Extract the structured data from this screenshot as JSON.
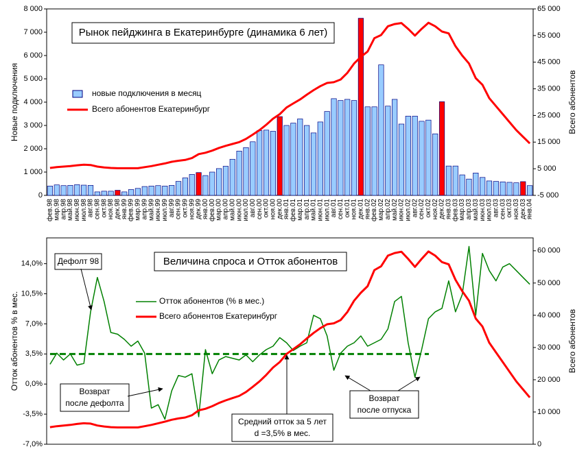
{
  "chart_data": [
    {
      "type": "bar",
      "title": "Рынок пейджинга в Екатеринбурге (динамика 6 лет)",
      "y_label": "Новые подключения",
      "y2_label": "Всего абонентов",
      "categories": [
        "фев.98",
        "мар.98",
        "апр.98",
        "май.98",
        "июн.98",
        "июл.98",
        "авг.98",
        "сен.98",
        "окт.98",
        "ноя.98",
        "дек.98",
        "янв.99",
        "фев.99",
        "мар.99",
        "апр.99",
        "май.99",
        "июн.99",
        "июл.99",
        "авг.99",
        "сен.99",
        "окт.99",
        "ноя.99",
        "дек.99",
        "янв.00",
        "фев.00",
        "мар.00",
        "апр.00",
        "май.00",
        "июн.00",
        "июл.00",
        "авг.00",
        "сен.00",
        "окт.00",
        "ноя.00",
        "дек.00",
        "янв.01",
        "фев.01",
        "мар.01",
        "апр.01",
        "май.01",
        "июн.01",
        "июл.01",
        "авг.01",
        "сен.01",
        "окт.01",
        "ноя.01",
        "дек.01",
        "янв.02",
        "фев.02",
        "мар.02",
        "апр.02",
        "май.02",
        "июн.02",
        "июл.02",
        "авг.02",
        "сен.02",
        "окт.02",
        "ноя.02",
        "дек.02",
        "янв.03",
        "фев.03",
        "мар.03",
        "апр.03",
        "май.03",
        "июн.03",
        "июл.03",
        "авг.03",
        "сен.03",
        "окт.03",
        "ноя.03",
        "дек.03",
        "янв.04"
      ],
      "series": [
        {
          "name": "новые подключения в месяц",
          "color": "#99ccff",
          "highlight_color": "#ff0000",
          "highlight_indices": [
            10,
            22,
            34,
            46,
            58,
            70
          ],
          "values": [
            400,
            450,
            420,
            430,
            460,
            440,
            430,
            150,
            180,
            180,
            220,
            150,
            250,
            300,
            380,
            400,
            420,
            400,
            430,
            600,
            750,
            900,
            980,
            850,
            1000,
            1150,
            1250,
            1550,
            1900,
            2050,
            2300,
            2780,
            2800,
            2750,
            3380,
            3000,
            3100,
            3280,
            3000,
            2680,
            3150,
            3600,
            4150,
            4070,
            4120,
            4070,
            7600,
            3800,
            3800,
            5600,
            3830,
            4120,
            3060,
            3400,
            3400,
            3180,
            3230,
            2640,
            4020,
            1260,
            1260,
            880,
            700,
            960,
            770,
            620,
            600,
            580,
            560,
            540,
            590,
            420
          ]
        },
        {
          "name": "Всего абонентов Екатеринбург",
          "color": "#ff0000",
          "axis": "y2",
          "type": "line",
          "values": [
            5300,
            5600,
            5800,
            6000,
            6300,
            6500,
            6400,
            5800,
            5500,
            5300,
            5200,
            5200,
            5200,
            5200,
            5600,
            6000,
            6500,
            7000,
            7600,
            8000,
            8300,
            9000,
            10500,
            11000,
            11800,
            12800,
            13600,
            14300,
            15000,
            16200,
            17800,
            19500,
            21500,
            23800,
            25500,
            28000,
            29500,
            31000,
            32800,
            34500,
            36000,
            37200,
            37500,
            38500,
            41000,
            44500,
            47000,
            49000,
            54000,
            55200,
            58500,
            59300,
            59700,
            57500,
            55000,
            57500,
            59800,
            58500,
            56500,
            55800,
            51000,
            47500,
            44500,
            39000,
            36500,
            31500,
            28500,
            25500,
            22500,
            19500,
            17000,
            14500
          ]
        }
      ],
      "ylim": [
        0,
        8000
      ],
      "yticks": [
        0,
        {
          "value": 1000,
          "label": "1 000"
        },
        {
          "value": 2000,
          "label": "2 000"
        },
        {
          "value": 3000,
          "label": "3 000"
        },
        {
          "value": 4000,
          "label": "4 000"
        },
        {
          "value": 5000,
          "label": "5 000"
        },
        {
          "value": 6000,
          "label": "6 000"
        },
        {
          "value": 7000,
          "label": "7 000"
        },
        {
          "value": 8000,
          "label": "8 000"
        }
      ],
      "y2lim": [
        -5000,
        65000
      ],
      "y2ticks": [
        {
          "value": -5000,
          "label": "-5 000"
        },
        {
          "value": 5000,
          "label": "5 000"
        },
        {
          "value": 15000,
          "label": "15 000"
        },
        {
          "value": 25000,
          "label": "25 000"
        },
        {
          "value": 35000,
          "label": "35 000"
        },
        {
          "value": 45000,
          "label": "45 000"
        },
        {
          "value": 55000,
          "label": "55 000"
        },
        {
          "value": 65000,
          "label": "65 000"
        }
      ],
      "legend": "upper left",
      "grid": false
    },
    {
      "type": "line",
      "title": "Величина спроса и Отток абонентов",
      "y_label": "Отток абонентов % в мес.",
      "y2_label": "Всего абонентов",
      "series": [
        {
          "name": "Отток абонентов (% в мес.)",
          "color": "#008000",
          "values": [
            2.3,
            3.6,
            2.8,
            3.5,
            2.2,
            2.4,
            8.4,
            12.4,
            9.6,
            6.0,
            5.8,
            5.2,
            4.4,
            5.0,
            3.6,
            -2.8,
            -2.4,
            -4.1,
            -0.8,
            1.0,
            0.8,
            1.2,
            -3.8,
            4.0,
            1.2,
            2.8,
            3.2,
            3.0,
            2.8,
            3.4,
            2.6,
            3.4,
            4.0,
            4.4,
            5.4,
            4.8,
            3.9,
            4.4,
            4.8,
            8.0,
            7.6,
            5.6,
            1.6,
            3.6,
            4.4,
            4.8,
            5.6,
            4.4,
            4.8,
            5.2,
            6.4,
            9.6,
            10.2,
            4.8,
            0.8,
            4.0,
            7.6,
            8.4,
            8.8,
            12.0,
            8.4,
            10.4,
            16.0,
            8.0,
            15.2,
            13.2,
            12.0,
            13.6,
            14.0,
            13.2,
            12.4,
            11.6
          ]
        },
        {
          "name": "Всего абонентов Екатеринбург",
          "color": "#ff0000",
          "axis": "y2",
          "values": [
            5300,
            5600,
            5800,
            6000,
            6300,
            6500,
            6400,
            5800,
            5500,
            5300,
            5200,
            5200,
            5200,
            5200,
            5600,
            6000,
            6500,
            7000,
            7600,
            8000,
            8300,
            9000,
            10500,
            11000,
            11800,
            12800,
            13600,
            14300,
            15000,
            16200,
            17800,
            19500,
            21500,
            23800,
            25500,
            28000,
            29500,
            31000,
            32800,
            34500,
            36000,
            37200,
            37500,
            38500,
            41000,
            44500,
            47000,
            49000,
            54000,
            55200,
            58500,
            59300,
            59700,
            57500,
            55000,
            57500,
            59800,
            58500,
            56500,
            55800,
            51000,
            47500,
            44500,
            39000,
            36500,
            31500,
            28500,
            25500,
            22500,
            19500,
            17000,
            14500
          ]
        }
      ],
      "average": 3.5,
      "ylim": [
        -7,
        17
      ],
      "yticks": [
        {
          "value": -7,
          "label": "-7,0%"
        },
        {
          "value": -3.5,
          "label": "-3,5%"
        },
        {
          "value": 0,
          "label": "0,0%"
        },
        {
          "value": 3.5,
          "label": "3,5%"
        },
        {
          "value": 7,
          "label": "7,0%"
        },
        {
          "value": 10.5,
          "label": "10,5%"
        },
        {
          "value": 14,
          "label": "14,0%"
        }
      ],
      "y2lim": [
        0,
        64000
      ],
      "y2ticks": [
        0,
        {
          "value": 10000,
          "label": "10 000"
        },
        {
          "value": 20000,
          "label": "20 000"
        },
        {
          "value": 30000,
          "label": "30 000"
        },
        {
          "value": 40000,
          "label": "40 000"
        },
        {
          "value": 50000,
          "label": "50 000"
        },
        {
          "value": 60000,
          "label": "60 000"
        }
      ],
      "annotations": [
        {
          "lines": [
            "Дефолт 98"
          ]
        },
        {
          "lines": [
            "Возврат",
            "после дефолта"
          ]
        },
        {
          "lines": [
            "Средний отток за 5 лет",
            "d =3,5% в мес."
          ]
        },
        {
          "lines": [
            "Возврат",
            "после отпуска"
          ]
        }
      ]
    }
  ]
}
